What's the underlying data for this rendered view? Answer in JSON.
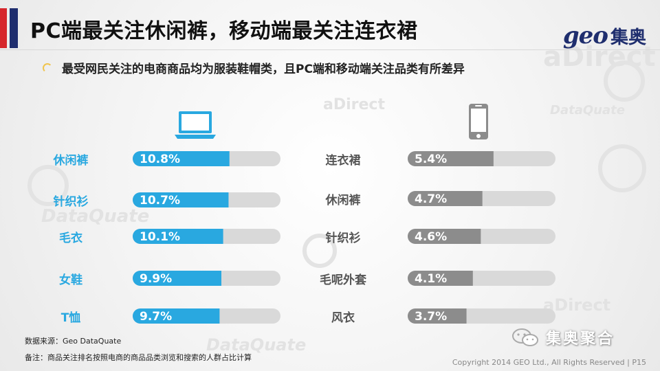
{
  "title": "PC端最关注休闲裤，移动端最关注连衣裙",
  "logo": {
    "brand": "geo",
    "cn": "集奥"
  },
  "subtitle": "最受网民关注的电商商品均为服装鞋帽类，且PC端和移动端关注品类有所差异",
  "chart_data": [
    {
      "type": "bar",
      "device": "PC",
      "categories": [
        "休闲裤",
        "针织衫",
        "毛衣",
        "女鞋",
        "T恤"
      ],
      "values": [
        10.8,
        10.7,
        10.1,
        9.9,
        9.7
      ],
      "value_labels": [
        "10.8%",
        "10.7%",
        "10.1%",
        "9.9%",
        "9.7%"
      ],
      "color": "#29a8e0",
      "orientation": "horizontal"
    },
    {
      "type": "bar",
      "device": "Mobile",
      "categories": [
        "连衣裙",
        "休闲裤",
        "针织衫",
        "毛呢外套",
        "风衣"
      ],
      "values": [
        5.4,
        4.7,
        4.6,
        4.1,
        3.7
      ],
      "value_labels": [
        "5.4%",
        "4.7%",
        "4.6%",
        "4.1%",
        "3.7%"
      ],
      "color": "#8c8c8c",
      "orientation": "horizontal"
    }
  ],
  "icons": {
    "pc": "laptop-icon",
    "mobile": "phone-icon",
    "wechat": "wechat-icon"
  },
  "colors": {
    "accent_red": "#d6262b",
    "navy": "#1f2e6e",
    "pc_bar": "#29a8e0",
    "mobile_bar": "#8c8c8c",
    "track": "#d9d9d9"
  },
  "source": "数据来源：Geo DataQuate",
  "note": "备注：商品关注排名按照电商的商品品类浏览和搜索的人群占比计算",
  "watermark": "集奥聚合",
  "copyright": "Copyright 2014 GEO Ltd., All Rights Reserved   |   P15"
}
